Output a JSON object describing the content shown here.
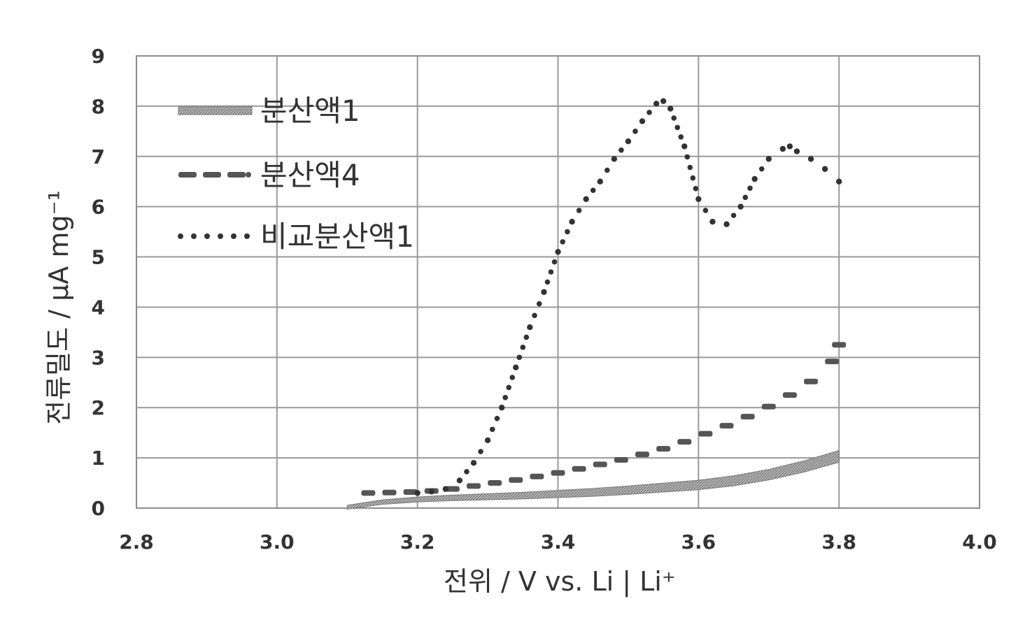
{
  "chart_data": {
    "type": "line",
    "xlabel": "전위 / V vs. Li | Li⁺",
    "ylabel": "전류밀도 / μA mg⁻¹",
    "xlim": [
      2.8,
      4.0
    ],
    "ylim": [
      0,
      9
    ],
    "x_ticks": [
      "2.8",
      "3.0",
      "3.2",
      "3.4",
      "3.6",
      "3.8",
      "4.0"
    ],
    "y_ticks": [
      "0",
      "1",
      "2",
      "3",
      "4",
      "5",
      "6",
      "7",
      "8",
      "9"
    ],
    "grid": true,
    "legend_position": "top-left",
    "series": [
      {
        "name": "분산액1",
        "style": "solid-thick",
        "color": "#8a8a8a",
        "x": [
          3.1,
          3.15,
          3.2,
          3.25,
          3.3,
          3.35,
          3.4,
          3.45,
          3.5,
          3.55,
          3.6,
          3.65,
          3.7,
          3.75,
          3.8
        ],
        "y": [
          0.0,
          0.1,
          0.15,
          0.18,
          0.2,
          0.22,
          0.25,
          0.28,
          0.32,
          0.37,
          0.42,
          0.5,
          0.62,
          0.78,
          0.98
        ]
      },
      {
        "name": "분산액4",
        "style": "dashed",
        "color": "#555555",
        "x": [
          3.13,
          3.16,
          3.19,
          3.22,
          3.25,
          3.28,
          3.31,
          3.34,
          3.37,
          3.4,
          3.43,
          3.46,
          3.49,
          3.52,
          3.55,
          3.58,
          3.61,
          3.64,
          3.67,
          3.7,
          3.73,
          3.76,
          3.79,
          3.8
        ],
        "y": [
          0.3,
          0.31,
          0.32,
          0.34,
          0.38,
          0.44,
          0.5,
          0.56,
          0.63,
          0.7,
          0.78,
          0.87,
          0.96,
          1.07,
          1.18,
          1.32,
          1.48,
          1.64,
          1.82,
          2.02,
          2.25,
          2.52,
          2.92,
          3.25
        ]
      },
      {
        "name": "비교분산액1",
        "style": "dotted",
        "color": "#333333",
        "x": [
          3.2,
          3.22,
          3.24,
          3.26,
          3.28,
          3.3,
          3.32,
          3.34,
          3.36,
          3.38,
          3.4,
          3.42,
          3.44,
          3.46,
          3.48,
          3.5,
          3.52,
          3.54,
          3.55,
          3.56,
          3.58,
          3.6,
          3.62,
          3.64,
          3.66,
          3.68,
          3.7,
          3.72,
          3.73,
          3.74,
          3.76,
          3.78,
          3.8
        ],
        "y": [
          0.3,
          0.33,
          0.38,
          0.55,
          0.9,
          1.35,
          2.0,
          2.8,
          3.6,
          4.3,
          5.1,
          5.7,
          6.15,
          6.5,
          6.95,
          7.3,
          7.7,
          8.05,
          8.1,
          7.95,
          7.2,
          6.15,
          5.7,
          5.65,
          6.0,
          6.55,
          6.95,
          7.15,
          7.2,
          7.1,
          6.95,
          6.75,
          6.5
        ]
      }
    ]
  }
}
